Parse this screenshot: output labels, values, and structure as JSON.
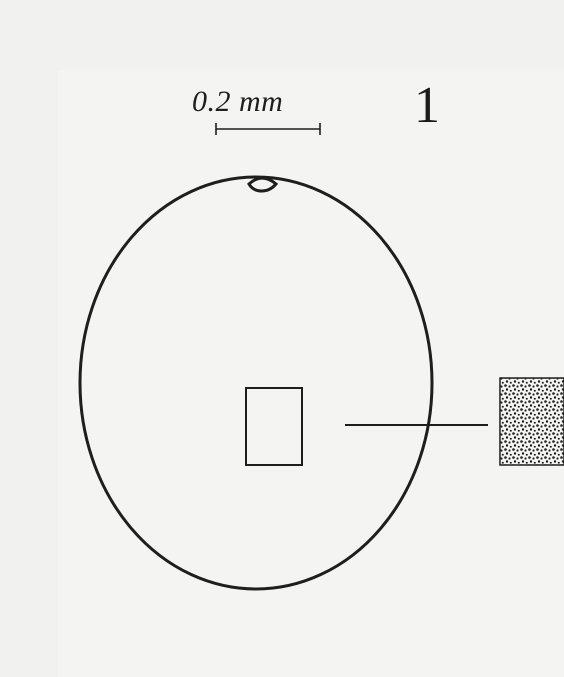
{
  "figure": {
    "number": "1",
    "scale_bar": {
      "label": "0.2 mm"
    }
  },
  "colors": {
    "ink": "#1e1e1e",
    "paper": "#f4f4f2",
    "background": "#f1f1ef"
  }
}
